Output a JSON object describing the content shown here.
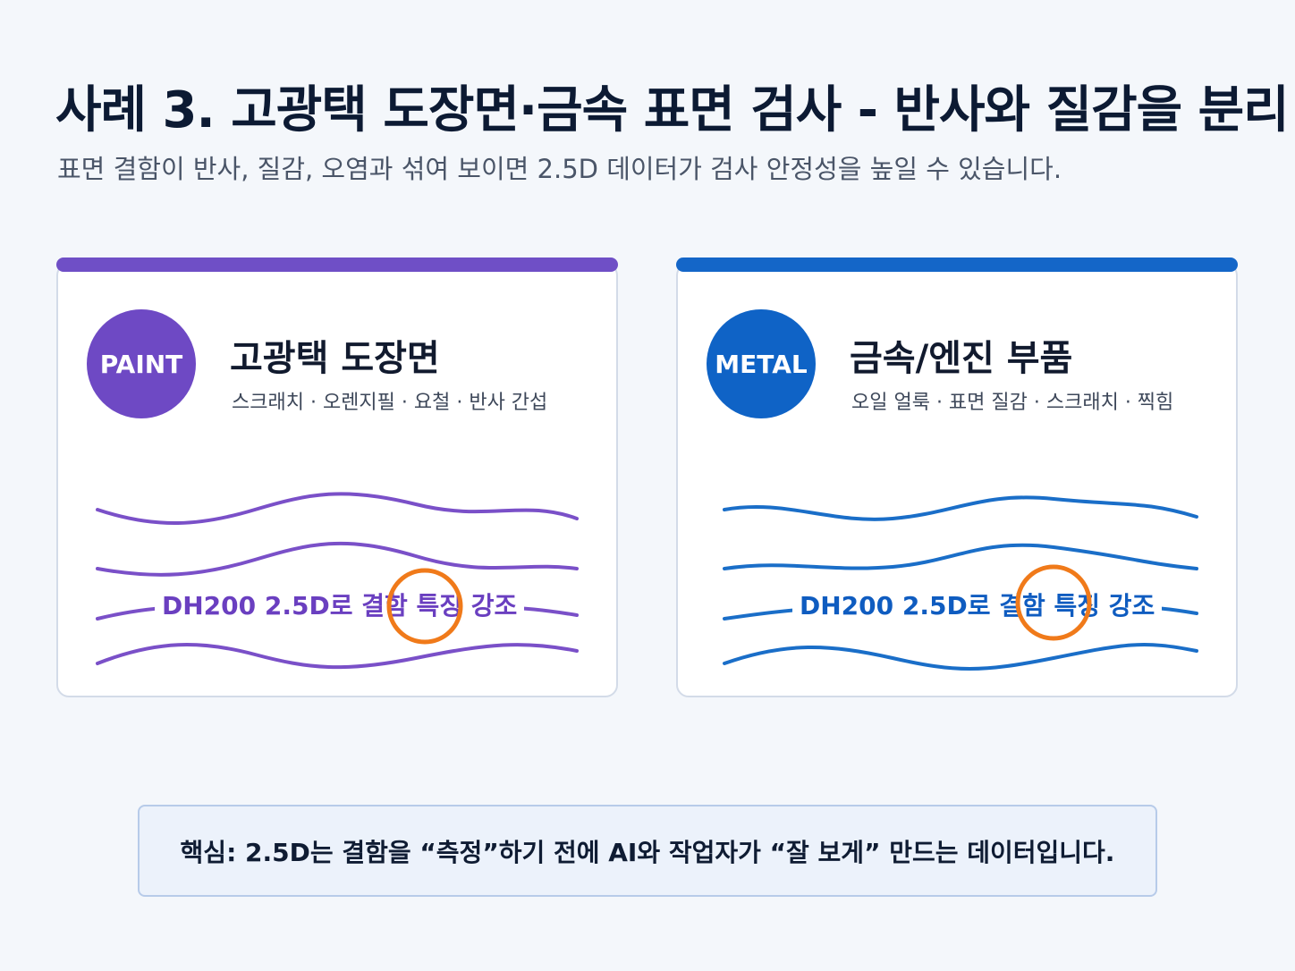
{
  "page": {
    "title": "사례 3. 고광택 도장면·금속 표면 검사 - 반사와 질감을 분리",
    "subtitle": "표면 결함이 반사, 질감, 오염과 섞여 보이면 2.5D 데이터가 검사 안정성을 높일 수 있습니다."
  },
  "cards": [
    {
      "badge": "PAINT",
      "title": "고광택 도장면",
      "tags": "스크래치 · 오렌지필 · 요철 · 반사 간섭",
      "wave_label": "DH200 2.5D로 결함 특징 강조",
      "accent_color": "#6f4fc6"
    },
    {
      "badge": "METAL",
      "title": "금속/엔진 부품",
      "tags": "오일 얼룩 · 표면 질감 · 스크래치 · 찍힘",
      "wave_label": "DH200 2.5D로 결함 특징 강조",
      "accent_color": "#1466c8"
    }
  ],
  "highlight_color": "#f07a1a",
  "bottom": {
    "text": "핵심: 2.5D는 결함을 “측정”하기 전에 AI와 작업자가 “잘 보게” 만드는 데이터입니다."
  }
}
